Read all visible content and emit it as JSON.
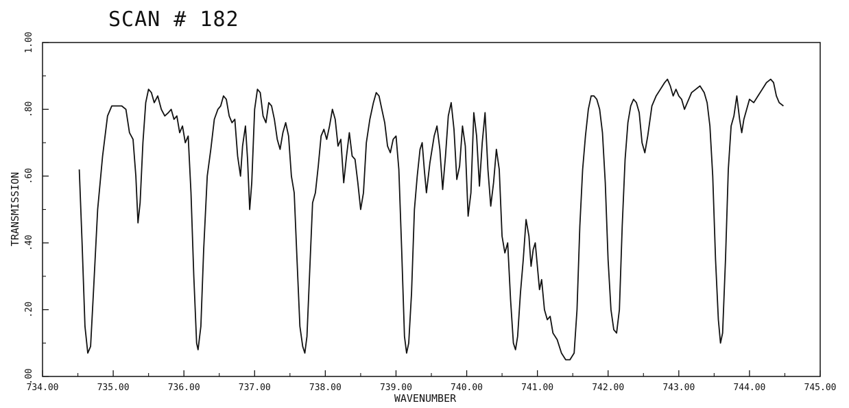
{
  "chart_data": {
    "type": "line",
    "title": "SCAN #  182",
    "xlabel": "WAVENUMBER",
    "ylabel": "TRANSMISSION",
    "xlim": [
      734.0,
      745.0
    ],
    "ylim": [
      0.0,
      1.0
    ],
    "x_ticks": [
      "734.00",
      "735.00",
      "736.00",
      "737.00",
      "738.00",
      "739.00",
      "740.00",
      "741.00",
      "742.00",
      "743.00",
      "744.00",
      "745.00"
    ],
    "y_ticks": [
      ".00",
      ".20",
      ".40",
      ".60",
      ".80",
      "1.00"
    ],
    "grid": false,
    "line_color": "#111111",
    "series": [
      {
        "points": [
          [
            734.52,
            0.62
          ],
          [
            734.56,
            0.4
          ],
          [
            734.6,
            0.15
          ],
          [
            734.64,
            0.07
          ],
          [
            734.68,
            0.09
          ],
          [
            734.72,
            0.25
          ],
          [
            734.78,
            0.5
          ],
          [
            734.85,
            0.66
          ],
          [
            734.92,
            0.78
          ],
          [
            734.98,
            0.81
          ],
          [
            735.05,
            0.81
          ],
          [
            735.12,
            0.81
          ],
          [
            735.18,
            0.8
          ],
          [
            735.23,
            0.73
          ],
          [
            735.28,
            0.71
          ],
          [
            735.32,
            0.6
          ],
          [
            735.35,
            0.46
          ],
          [
            735.38,
            0.52
          ],
          [
            735.42,
            0.7
          ],
          [
            735.46,
            0.82
          ],
          [
            735.5,
            0.86
          ],
          [
            735.54,
            0.85
          ],
          [
            735.58,
            0.82
          ],
          [
            735.63,
            0.84
          ],
          [
            735.68,
            0.8
          ],
          [
            735.73,
            0.78
          ],
          [
            735.78,
            0.79
          ],
          [
            735.82,
            0.8
          ],
          [
            735.86,
            0.77
          ],
          [
            735.9,
            0.78
          ],
          [
            735.94,
            0.73
          ],
          [
            735.98,
            0.75
          ],
          [
            736.02,
            0.7
          ],
          [
            736.06,
            0.72
          ],
          [
            736.1,
            0.55
          ],
          [
            736.14,
            0.3
          ],
          [
            736.18,
            0.1
          ],
          [
            736.2,
            0.08
          ],
          [
            736.24,
            0.15
          ],
          [
            736.28,
            0.38
          ],
          [
            736.33,
            0.6
          ],
          [
            736.38,
            0.68
          ],
          [
            736.43,
            0.77
          ],
          [
            736.48,
            0.8
          ],
          [
            736.52,
            0.81
          ],
          [
            736.56,
            0.84
          ],
          [
            736.6,
            0.83
          ],
          [
            736.64,
            0.78
          ],
          [
            736.68,
            0.76
          ],
          [
            736.72,
            0.77
          ],
          [
            736.76,
            0.66
          ],
          [
            736.8,
            0.6
          ],
          [
            736.83,
            0.69
          ],
          [
            736.87,
            0.75
          ],
          [
            736.9,
            0.65
          ],
          [
            736.93,
            0.5
          ],
          [
            736.96,
            0.58
          ],
          [
            737.0,
            0.8
          ],
          [
            737.04,
            0.86
          ],
          [
            737.08,
            0.85
          ],
          [
            737.12,
            0.78
          ],
          [
            737.16,
            0.76
          ],
          [
            737.2,
            0.82
          ],
          [
            737.24,
            0.81
          ],
          [
            737.28,
            0.77
          ],
          [
            737.32,
            0.71
          ],
          [
            737.36,
            0.68
          ],
          [
            737.4,
            0.73
          ],
          [
            737.44,
            0.76
          ],
          [
            737.48,
            0.72
          ],
          [
            737.52,
            0.6
          ],
          [
            737.56,
            0.55
          ],
          [
            737.6,
            0.35
          ],
          [
            737.64,
            0.15
          ],
          [
            737.68,
            0.09
          ],
          [
            737.71,
            0.07
          ],
          [
            737.74,
            0.12
          ],
          [
            737.78,
            0.32
          ],
          [
            737.82,
            0.52
          ],
          [
            737.86,
            0.55
          ],
          [
            737.9,
            0.63
          ],
          [
            737.94,
            0.72
          ],
          [
            737.98,
            0.74
          ],
          [
            738.02,
            0.71
          ],
          [
            738.06,
            0.75
          ],
          [
            738.1,
            0.8
          ],
          [
            738.14,
            0.77
          ],
          [
            738.18,
            0.69
          ],
          [
            738.22,
            0.71
          ],
          [
            738.26,
            0.58
          ],
          [
            738.3,
            0.66
          ],
          [
            738.34,
            0.73
          ],
          [
            738.38,
            0.66
          ],
          [
            738.42,
            0.65
          ],
          [
            738.46,
            0.58
          ],
          [
            738.5,
            0.5
          ],
          [
            738.54,
            0.55
          ],
          [
            738.58,
            0.7
          ],
          [
            738.63,
            0.77
          ],
          [
            738.68,
            0.82
          ],
          [
            738.72,
            0.85
          ],
          [
            738.76,
            0.84
          ],
          [
            738.8,
            0.8
          ],
          [
            738.84,
            0.76
          ],
          [
            738.88,
            0.69
          ],
          [
            738.92,
            0.67
          ],
          [
            738.96,
            0.71
          ],
          [
            739.0,
            0.72
          ],
          [
            739.04,
            0.62
          ],
          [
            739.08,
            0.38
          ],
          [
            739.12,
            0.12
          ],
          [
            739.15,
            0.07
          ],
          [
            739.18,
            0.1
          ],
          [
            739.22,
            0.25
          ],
          [
            739.26,
            0.5
          ],
          [
            739.3,
            0.6
          ],
          [
            739.34,
            0.68
          ],
          [
            739.37,
            0.7
          ],
          [
            739.4,
            0.62
          ],
          [
            739.43,
            0.55
          ],
          [
            739.48,
            0.64
          ],
          [
            739.54,
            0.72
          ],
          [
            739.58,
            0.75
          ],
          [
            739.62,
            0.68
          ],
          [
            739.66,
            0.56
          ],
          [
            739.7,
            0.66
          ],
          [
            739.74,
            0.78
          ],
          [
            739.78,
            0.82
          ],
          [
            739.82,
            0.74
          ],
          [
            739.86,
            0.59
          ],
          [
            739.9,
            0.63
          ],
          [
            739.94,
            0.75
          ],
          [
            739.98,
            0.69
          ],
          [
            740.02,
            0.48
          ],
          [
            740.06,
            0.55
          ],
          [
            740.1,
            0.79
          ],
          [
            740.14,
            0.72
          ],
          [
            740.18,
            0.57
          ],
          [
            740.22,
            0.7
          ],
          [
            740.26,
            0.79
          ],
          [
            740.3,
            0.62
          ],
          [
            740.34,
            0.51
          ],
          [
            740.38,
            0.58
          ],
          [
            740.42,
            0.68
          ],
          [
            740.46,
            0.62
          ],
          [
            740.5,
            0.42
          ],
          [
            740.54,
            0.37
          ],
          [
            740.58,
            0.4
          ],
          [
            740.62,
            0.23
          ],
          [
            740.66,
            0.1
          ],
          [
            740.69,
            0.08
          ],
          [
            740.72,
            0.12
          ],
          [
            740.76,
            0.25
          ],
          [
            740.8,
            0.35
          ],
          [
            740.84,
            0.47
          ],
          [
            740.88,
            0.42
          ],
          [
            740.91,
            0.33
          ],
          [
            740.94,
            0.38
          ],
          [
            740.97,
            0.4
          ],
          [
            741.0,
            0.33
          ],
          [
            741.03,
            0.26
          ],
          [
            741.06,
            0.29
          ],
          [
            741.1,
            0.2
          ],
          [
            741.14,
            0.17
          ],
          [
            741.18,
            0.18
          ],
          [
            741.22,
            0.13
          ],
          [
            741.28,
            0.11
          ],
          [
            741.34,
            0.07
          ],
          [
            741.4,
            0.05
          ],
          [
            741.46,
            0.05
          ],
          [
            741.52,
            0.07
          ],
          [
            741.56,
            0.2
          ],
          [
            741.6,
            0.45
          ],
          [
            741.64,
            0.62
          ],
          [
            741.68,
            0.72
          ],
          [
            741.72,
            0.8
          ],
          [
            741.76,
            0.84
          ],
          [
            741.8,
            0.84
          ],
          [
            741.84,
            0.83
          ],
          [
            741.88,
            0.8
          ],
          [
            741.92,
            0.73
          ],
          [
            741.96,
            0.58
          ],
          [
            742.0,
            0.35
          ],
          [
            742.04,
            0.2
          ],
          [
            742.08,
            0.14
          ],
          [
            742.12,
            0.13
          ],
          [
            742.16,
            0.2
          ],
          [
            742.2,
            0.45
          ],
          [
            742.24,
            0.65
          ],
          [
            742.28,
            0.76
          ],
          [
            742.32,
            0.81
          ],
          [
            742.36,
            0.83
          ],
          [
            742.4,
            0.82
          ],
          [
            742.44,
            0.79
          ],
          [
            742.48,
            0.7
          ],
          [
            742.52,
            0.67
          ],
          [
            742.56,
            0.72
          ],
          [
            742.62,
            0.81
          ],
          [
            742.68,
            0.84
          ],
          [
            742.74,
            0.86
          ],
          [
            742.8,
            0.88
          ],
          [
            742.84,
            0.89
          ],
          [
            742.88,
            0.87
          ],
          [
            742.92,
            0.84
          ],
          [
            742.96,
            0.86
          ],
          [
            743.0,
            0.84
          ],
          [
            743.04,
            0.83
          ],
          [
            743.08,
            0.8
          ],
          [
            743.12,
            0.82
          ],
          [
            743.18,
            0.85
          ],
          [
            743.24,
            0.86
          ],
          [
            743.3,
            0.87
          ],
          [
            743.36,
            0.85
          ],
          [
            743.4,
            0.82
          ],
          [
            743.44,
            0.75
          ],
          [
            743.48,
            0.6
          ],
          [
            743.52,
            0.35
          ],
          [
            743.56,
            0.17
          ],
          [
            743.59,
            0.1
          ],
          [
            743.62,
            0.13
          ],
          [
            743.66,
            0.35
          ],
          [
            743.7,
            0.62
          ],
          [
            743.74,
            0.75
          ],
          [
            743.78,
            0.78
          ],
          [
            743.82,
            0.84
          ],
          [
            743.86,
            0.77
          ],
          [
            743.89,
            0.73
          ],
          [
            743.92,
            0.77
          ],
          [
            743.96,
            0.8
          ],
          [
            744.0,
            0.83
          ],
          [
            744.06,
            0.82
          ],
          [
            744.12,
            0.84
          ],
          [
            744.18,
            0.86
          ],
          [
            744.24,
            0.88
          ],
          [
            744.3,
            0.89
          ],
          [
            744.34,
            0.88
          ],
          [
            744.38,
            0.84
          ],
          [
            744.42,
            0.82
          ],
          [
            744.48,
            0.81
          ]
        ]
      }
    ]
  }
}
